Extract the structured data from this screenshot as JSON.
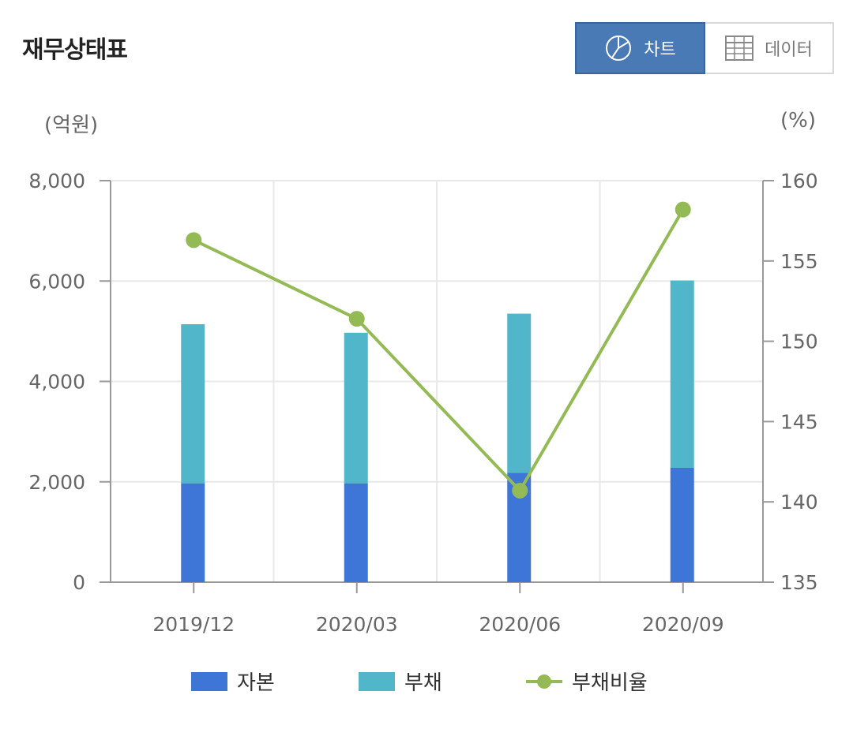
{
  "header": {
    "title": "재무상태표",
    "chart_button_label": "차트",
    "data_button_label": "데이터"
  },
  "icons": {
    "chart_icon": "pie-chart-icon",
    "data_icon": "table-grid-icon"
  },
  "colors": {
    "equity": "#3e76d8",
    "liabilities": "#52b6ca",
    "ratio": "#93ba55",
    "toggle_active": "#4a7ab5"
  },
  "chart_data": {
    "type": "bar",
    "stacked": true,
    "categories": [
      "2019/12",
      "2020/03",
      "2020/06",
      "2020/09"
    ],
    "left_axis": {
      "unit": "(억원)",
      "ylim": [
        0,
        8000
      ],
      "ticks": [
        0,
        2000,
        4000,
        6000,
        8000
      ],
      "tick_labels": [
        "0",
        "2,000",
        "4,000",
        "6,000",
        "8,000"
      ]
    },
    "right_axis": {
      "unit": "(%)",
      "ylim": [
        135,
        160
      ],
      "ticks": [
        135,
        140,
        145,
        150,
        155,
        160
      ],
      "tick_labels": [
        "135",
        "140",
        "145",
        "150",
        "155",
        "160"
      ]
    },
    "series": [
      {
        "name": "자본",
        "type": "bar",
        "axis": "left",
        "values": [
          1970,
          1970,
          2180,
          2280
        ]
      },
      {
        "name": "부채",
        "type": "bar",
        "axis": "left",
        "values": [
          3170,
          3000,
          3170,
          3730
        ]
      },
      {
        "name": "부채비율",
        "type": "line",
        "axis": "right",
        "values": [
          156.3,
          151.4,
          140.7,
          158.2
        ]
      }
    ],
    "grid": true,
    "legend_position": "bottom"
  }
}
